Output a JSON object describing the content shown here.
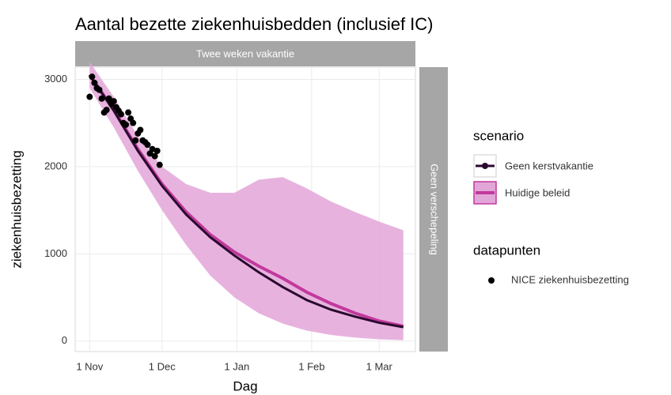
{
  "chart_data": {
    "type": "line",
    "title": "Aantal bezette ziekenhuisbedden (inclusief IC)",
    "facet_top": "Twee weken vakantie",
    "facet_right": "Geen verschepeling",
    "x_label": "Dag",
    "y_label": "ziekenhuisbezetting",
    "x": [
      0,
      10,
      20,
      30,
      40,
      50,
      60,
      70,
      80,
      90,
      100,
      110,
      120,
      130
    ],
    "series": [
      {
        "name": "Geen kerstvakantie",
        "color": "#2a0a30",
        "values": [
          3050,
          2640,
          2180,
          1780,
          1450,
          1190,
          980,
          790,
          620,
          470,
          360,
          280,
          210,
          160
        ]
      },
      {
        "name": "Huidige beleid",
        "color": "#c2399c",
        "band_color": "#e3a6d8",
        "values": [
          3050,
          2650,
          2200,
          1800,
          1480,
          1220,
          1020,
          860,
          720,
          560,
          430,
          320,
          230,
          170
        ],
        "band_lower": [
          2900,
          2450,
          1950,
          1500,
          1100,
          750,
          500,
          320,
          200,
          120,
          70,
          40,
          20,
          10
        ],
        "band_upper": [
          3200,
          2800,
          2350,
          2000,
          1800,
          1700,
          1700,
          1850,
          1880,
          1750,
          1600,
          1480,
          1370,
          1270
        ]
      }
    ],
    "legend_title": "scenario",
    "points_legend_title": "datapunten",
    "points": {
      "name": "NICE ziekenhuisbezetting",
      "color": "#000000",
      "x": [
        0,
        1,
        2,
        3,
        4,
        5,
        6,
        7,
        8,
        9,
        10,
        11,
        12,
        13,
        14,
        15,
        16,
        17,
        18,
        19,
        20,
        21,
        22,
        23,
        24,
        25,
        26,
        27,
        28,
        29
      ],
      "values": [
        2800,
        3030,
        2960,
        2900,
        2880,
        2780,
        2620,
        2650,
        2780,
        2720,
        2750,
        2680,
        2640,
        2600,
        2500,
        2480,
        2620,
        2550,
        2500,
        2300,
        2380,
        2420,
        2300,
        2280,
        2250,
        2150,
        2200,
        2120,
        2180,
        2020
      ]
    },
    "xlim": [
      -6,
      135
    ],
    "xticks": [
      {
        "value": 0,
        "label": "1 Nov"
      },
      {
        "value": 30,
        "label": "1 Dec"
      },
      {
        "value": 61,
        "label": "1 Jan"
      },
      {
        "value": 92,
        "label": "1 Feb"
      },
      {
        "value": 120,
        "label": "1 Mar"
      }
    ],
    "ylim": [
      -120,
      3140
    ],
    "yticks": [
      0,
      1000,
      2000,
      3000
    ],
    "grid": true
  }
}
